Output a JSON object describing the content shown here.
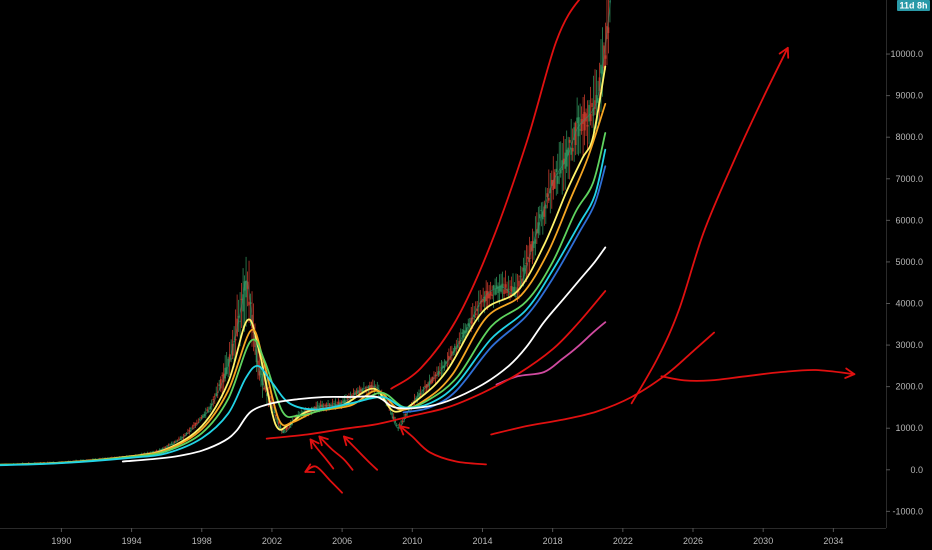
{
  "price_badge": "11d 8h",
  "colors": {
    "background": "#000000",
    "axis_text": "#b8b8b8",
    "badge": "#2a9aa8",
    "annotation": "#e01010",
    "candle_up": "#2e8b57",
    "candle_down": "#c0392b"
  },
  "chart_data": {
    "type": "line",
    "xlabel": "",
    "ylabel": "",
    "xlim": [
      1986.5,
      2037.0
    ],
    "ylim": [
      -1400,
      11300
    ],
    "x_ticks": [
      "1990",
      "1994",
      "1998",
      "2002",
      "2006",
      "2010",
      "2014",
      "2018",
      "2022",
      "2026",
      "2030",
      "2034"
    ],
    "y_ticks": [
      "10000.0",
      "9000.0",
      "8000.0",
      "7000.0",
      "6000.0",
      "5000.0",
      "4000.0",
      "3000.0",
      "2000.0",
      "1000.0",
      "0.0",
      "-1000.0"
    ],
    "price": {
      "x": [
        1986.5,
        1988,
        1990,
        1992,
        1994,
        1995.5,
        1997,
        1998.5,
        1999.5,
        2000.2,
        2000.6,
        2001.2,
        2001.8,
        2002.6,
        2003.5,
        2004.5,
        2006,
        2007,
        2007.9,
        2008.6,
        2009.2,
        2010,
        2011,
        2012,
        2013,
        2014,
        2015,
        2016,
        2017,
        2018,
        2018.8,
        2019.4,
        2020.2,
        2020.6,
        2021.0,
        2021.3
      ],
      "y": [
        120,
        150,
        180,
        250,
        330,
        450,
        800,
        1500,
        2500,
        3800,
        4500,
        2500,
        1800,
        900,
        1300,
        1500,
        1600,
        1900,
        2000,
        1600,
        1000,
        1600,
        2100,
        2600,
        3300,
        4100,
        4400,
        4300,
        5600,
        6900,
        7500,
        8200,
        8600,
        9000,
        10200,
        11300
      ]
    },
    "series": [
      {
        "color": "#fff26b",
        "x": [
          1986.5,
          1990,
          1994,
          1996,
          1998,
          1999.5,
          2000.6,
          2001.3,
          2002.2,
          2003,
          2004,
          2006,
          2007.8,
          2009,
          2010.5,
          2012,
          2014,
          2016,
          2017.5,
          2018.8,
          2019.7,
          2020.3,
          2021.0
        ],
        "y": [
          120,
          170,
          330,
          500,
          1050,
          2100,
          3600,
          2800,
          1100,
          1100,
          1400,
          1550,
          1950,
          1400,
          1750,
          2400,
          3800,
          4300,
          5400,
          6700,
          7500,
          8000,
          9700
        ]
      },
      {
        "color": "#f5a623",
        "x": [
          1986.5,
          1990,
          1994,
          1996,
          1998,
          1999.5,
          2000.8,
          2001.5,
          2002.4,
          2003.2,
          2004.5,
          2006.5,
          2008,
          2009.3,
          2010.8,
          2012.3,
          2014.2,
          2016.2,
          2017.7,
          2019,
          2020,
          2021.0
        ],
        "y": [
          120,
          170,
          320,
          480,
          980,
          1900,
          3350,
          2650,
          1200,
          1150,
          1400,
          1550,
          1900,
          1450,
          1700,
          2300,
          3650,
          4200,
          5200,
          6500,
          7500,
          8800
        ]
      },
      {
        "color": "#5fd35f",
        "x": [
          1986.5,
          1990,
          1994,
          1996,
          1998,
          1999.5,
          2000.8,
          2001.6,
          2002.6,
          2003.5,
          2005,
          2007,
          2008.3,
          2009.6,
          2011,
          2012.6,
          2014.5,
          2016.5,
          2018,
          2019.3,
          2020.3,
          2021.0
        ],
        "y": [
          120,
          165,
          310,
          450,
          880,
          1700,
          3100,
          2600,
          1400,
          1300,
          1450,
          1650,
          1850,
          1500,
          1700,
          2250,
          3450,
          4050,
          5000,
          6200,
          6900,
          8100
        ]
      },
      {
        "color": "#22d3e6",
        "x": [
          1986.5,
          1990,
          1994,
          1996,
          1998,
          1999.5,
          2000.5,
          2001.2,
          2002,
          2003,
          2004.5,
          2006.5,
          2008.3,
          2009.5,
          2011,
          2012.5,
          2014.5,
          2016.5,
          2018,
          2019.5,
          2020.4,
          2021.0
        ],
        "y": [
          110,
          160,
          290,
          400,
          760,
          1350,
          2200,
          2500,
          2100,
          1600,
          1450,
          1600,
          1750,
          1500,
          1600,
          2050,
          3150,
          3850,
          4800,
          5900,
          6600,
          7700
        ]
      },
      {
        "color": "#2f6fd6",
        "x": [
          2009.5,
          2011,
          2012.5,
          2014.5,
          2016.5,
          2018,
          2019.5,
          2020.4,
          2021.0
        ],
        "y": [
          1380,
          1500,
          1900,
          2950,
          3700,
          4600,
          5700,
          6400,
          7300
        ]
      },
      {
        "color": "#ffffff",
        "x": [
          1993.5,
          1995,
          1996.5,
          1998,
          1999.3,
          2000,
          2000.8,
          2002,
          2003.5,
          2005,
          2006.5,
          2008,
          2009,
          2010.5,
          2012,
          2014,
          2015.5,
          2016.5,
          2017.5,
          2018.6,
          2019.6,
          2020.4,
          2021.0
        ],
        "y": [
          200,
          250,
          320,
          460,
          700,
          950,
          1400,
          1600,
          1700,
          1750,
          1750,
          1750,
          1500,
          1500,
          1650,
          2050,
          2500,
          2950,
          3550,
          4100,
          4600,
          5000,
          5350
        ]
      },
      {
        "color": "#d04aa0",
        "x": [
          2014.8,
          2016,
          2017.5,
          2018.5,
          2019.4,
          2020.3,
          2021.0
        ],
        "y": [
          2050,
          2250,
          2350,
          2650,
          2950,
          3300,
          3550
        ]
      }
    ],
    "annotations": [
      {
        "kind": "upper-channel",
        "color": "#e01010",
        "x": [
          2008.8,
          2010.5,
          2012.5,
          2014.5,
          2016.5,
          2018.2,
          2019.5,
          2020.3
        ],
        "y": [
          1950,
          2450,
          3600,
          5450,
          7850,
          10300,
          11300,
          11400
        ]
      },
      {
        "kind": "support-line",
        "color": "#e01010",
        "x": [
          2001.7,
          2004,
          2006,
          2008,
          2010,
          2012,
          2014,
          2016,
          2018,
          2019.5,
          2021.0
        ],
        "y": [
          750,
          850,
          980,
          1100,
          1300,
          1500,
          1850,
          2300,
          2900,
          3550,
          4300
        ]
      },
      {
        "kind": "lower-curve",
        "color": "#e01010",
        "x": [
          2014.5,
          2016.5,
          2018.5,
          2020.5,
          2022.5,
          2024.5,
          2026,
          2027.2
        ],
        "y": [
          850,
          1050,
          1200,
          1400,
          1750,
          2300,
          2850,
          3300
        ]
      },
      {
        "kind": "projection-up",
        "color": "#e01010",
        "x": [
          2022.5,
          2024,
          2025.2,
          2026.6,
          2028.3,
          2030,
          2031.4
        ],
        "y": [
          1600,
          2700,
          3850,
          5700,
          7400,
          8950,
          10150
        ]
      },
      {
        "kind": "projection-flat",
        "color": "#e01010",
        "x": [
          2024.2,
          2025.5,
          2027,
          2029,
          2031,
          2033,
          2035.2
        ],
        "y": [
          2250,
          2150,
          2150,
          2250,
          2350,
          2400,
          2300
        ]
      },
      {
        "kind": "pointer",
        "color": "#e01010",
        "x": [
          2014.2,
          2012.5,
          2011,
          2010,
          2009.3
        ],
        "y": [
          130,
          200,
          420,
          800,
          1050
        ]
      },
      {
        "kind": "pointer",
        "color": "#e01010",
        "x": [
          2004.2,
          2004.6,
          2005.1,
          2005.5
        ],
        "y": [
          730,
          500,
          250,
          30
        ]
      },
      {
        "kind": "pointer",
        "color": "#e01010",
        "x": [
          2004.7,
          2005.4,
          2006.1,
          2006.6
        ],
        "y": [
          800,
          500,
          250,
          0
        ]
      },
      {
        "kind": "pointer",
        "color": "#e01010",
        "x": [
          2006.1,
          2006.8,
          2007.5,
          2008.0
        ],
        "y": [
          800,
          500,
          200,
          0
        ]
      },
      {
        "kind": "pointer",
        "color": "#e01010",
        "x": [
          2003.9,
          2004.5,
          2005.3,
          2006.0
        ],
        "y": [
          -50,
          80,
          -250,
          -550
        ]
      }
    ]
  }
}
